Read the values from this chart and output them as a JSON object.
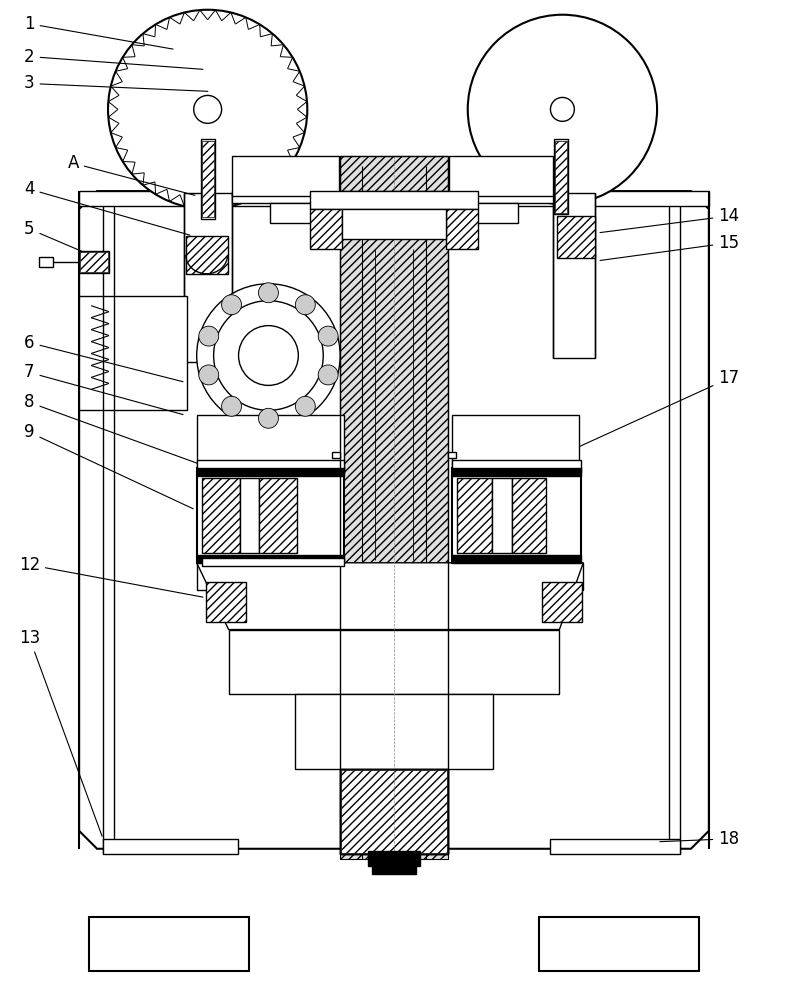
{
  "bg_color": "#ffffff",
  "line_color": "#000000",
  "figsize": [
    7.87,
    10.0
  ],
  "dpi": 100,
  "labels": [
    [
      "1",
      28,
      22,
      175,
      48
    ],
    [
      "2",
      28,
      55,
      205,
      68
    ],
    [
      "3",
      28,
      82,
      210,
      90
    ],
    [
      "A",
      72,
      162,
      197,
      195
    ],
    [
      "4",
      28,
      188,
      192,
      235
    ],
    [
      "5",
      28,
      228,
      108,
      262
    ],
    [
      "6",
      28,
      342,
      185,
      382
    ],
    [
      "7",
      28,
      372,
      185,
      415
    ],
    [
      "8",
      28,
      402,
      210,
      468
    ],
    [
      "9",
      28,
      432,
      195,
      510
    ],
    [
      "12",
      28,
      565,
      205,
      598
    ],
    [
      "13",
      28,
      638,
      102,
      840
    ],
    [
      "14",
      730,
      215,
      598,
      232
    ],
    [
      "15",
      730,
      242,
      598,
      260
    ],
    [
      "17",
      730,
      378,
      572,
      450
    ],
    [
      "18",
      730,
      840,
      658,
      843
    ]
  ]
}
